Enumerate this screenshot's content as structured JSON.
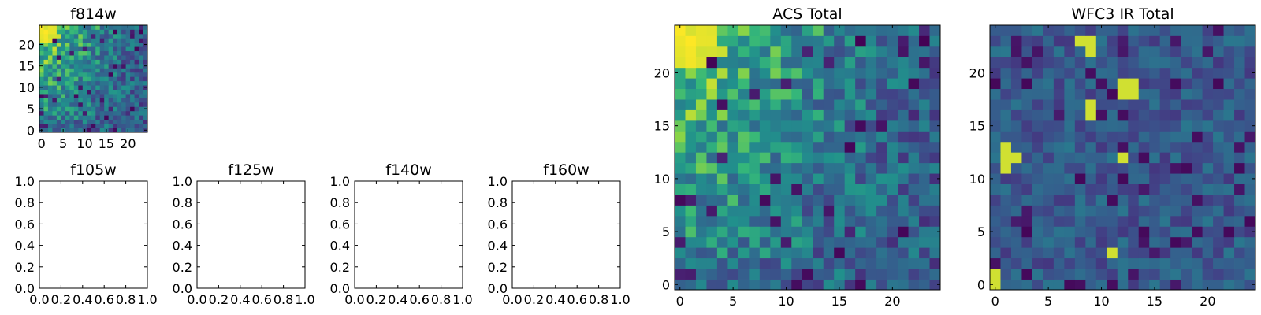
{
  "figure": {
    "background": "#ffffff",
    "colormap": "viridis"
  },
  "chart_data": [
    {
      "id": "f814w",
      "type": "heatmap",
      "title": "f814w",
      "xlabel": "",
      "ylabel": "",
      "xlim": [
        -0.5,
        24.5
      ],
      "ylim": [
        -0.5,
        24.5
      ],
      "xticks": [
        0,
        5,
        10,
        15,
        20
      ],
      "yticks": [
        0,
        5,
        10,
        15,
        20
      ],
      "xtick_labels": [
        "0",
        "5",
        "10",
        "15",
        "20"
      ],
      "ytick_labels": [
        "0",
        "5",
        "10",
        "15",
        "20"
      ],
      "grid_size": [
        25,
        25
      ],
      "seed": 11,
      "profile": "acs",
      "note_values": "25x25 image, normalized 0-1; brightest in upper-left corner"
    },
    {
      "id": "f105w",
      "type": "heatmap",
      "title": "f105w",
      "xlabel": "",
      "ylabel": "",
      "xlim": [
        0.0,
        1.0
      ],
      "ylim": [
        0.0,
        1.0
      ],
      "xticks": [
        0.0,
        0.2,
        0.4,
        0.6,
        0.8,
        1.0
      ],
      "yticks": [
        0.0,
        0.2,
        0.4,
        0.6,
        0.8,
        1.0
      ],
      "xtick_labels": [
        "0.0",
        "0.2",
        "0.4",
        "0.6",
        "0.8",
        "1.0"
      ],
      "ytick_labels": [
        "0.0",
        "0.2",
        "0.4",
        "0.6",
        "0.8",
        "1.0"
      ],
      "empty": true
    },
    {
      "id": "f125w",
      "type": "heatmap",
      "title": "f125w",
      "xlabel": "",
      "ylabel": "",
      "xlim": [
        0.0,
        1.0
      ],
      "ylim": [
        0.0,
        1.0
      ],
      "xticks": [
        0.0,
        0.2,
        0.4,
        0.6,
        0.8,
        1.0
      ],
      "yticks": [
        0.0,
        0.2,
        0.4,
        0.6,
        0.8,
        1.0
      ],
      "xtick_labels": [
        "0.0",
        "0.2",
        "0.4",
        "0.6",
        "0.8",
        "1.0"
      ],
      "ytick_labels": [
        "0.0",
        "0.2",
        "0.4",
        "0.6",
        "0.8",
        "1.0"
      ],
      "empty": true
    },
    {
      "id": "f140w",
      "type": "heatmap",
      "title": "f140w",
      "xlabel": "",
      "ylabel": "",
      "xlim": [
        0.0,
        1.0
      ],
      "ylim": [
        0.0,
        1.0
      ],
      "xticks": [
        0.0,
        0.2,
        0.4,
        0.6,
        0.8,
        1.0
      ],
      "yticks": [
        0.0,
        0.2,
        0.4,
        0.6,
        0.8,
        1.0
      ],
      "xtick_labels": [
        "0.0",
        "0.2",
        "0.4",
        "0.6",
        "0.8",
        "1.0"
      ],
      "ytick_labels": [
        "0.0",
        "0.2",
        "0.4",
        "0.6",
        "0.8",
        "1.0"
      ],
      "empty": true
    },
    {
      "id": "f160w",
      "type": "heatmap",
      "title": "f160w",
      "xlabel": "",
      "ylabel": "",
      "xlim": [
        0.0,
        1.0
      ],
      "ylim": [
        0.0,
        1.0
      ],
      "xticks": [
        0.0,
        0.2,
        0.4,
        0.6,
        0.8,
        1.0
      ],
      "yticks": [
        0.0,
        0.2,
        0.4,
        0.6,
        0.8,
        1.0
      ],
      "xtick_labels": [
        "0.0",
        "0.2",
        "0.4",
        "0.6",
        "0.8",
        "1.0"
      ],
      "ytick_labels": [
        "0.0",
        "0.2",
        "0.4",
        "0.6",
        "0.8",
        "1.0"
      ],
      "empty": true
    },
    {
      "id": "acs_total",
      "type": "heatmap",
      "title": "ACS Total",
      "xlabel": "",
      "ylabel": "",
      "xlim": [
        -0.5,
        24.5
      ],
      "ylim": [
        -0.5,
        24.5
      ],
      "xticks": [
        0,
        5,
        10,
        15,
        20
      ],
      "yticks": [
        0,
        5,
        10,
        15,
        20
      ],
      "xtick_labels": [
        "0",
        "5",
        "10",
        "15",
        "20"
      ],
      "ytick_labels": [
        "0",
        "5",
        "10",
        "15",
        "20"
      ],
      "grid_size": [
        25,
        25
      ],
      "seed": 11,
      "profile": "acs",
      "note_values": "25x25 image, normalized 0-1; bright gradient toward upper-left"
    },
    {
      "id": "wfc3_ir_total",
      "type": "heatmap",
      "title": "WFC3 IR Total",
      "xlabel": "",
      "ylabel": "",
      "xlim": [
        -0.5,
        24.5
      ],
      "ylim": [
        -0.5,
        24.5
      ],
      "xticks": [
        0,
        5,
        10,
        15,
        20
      ],
      "yticks": [
        0,
        5,
        10,
        15,
        20
      ],
      "xtick_labels": [
        "0",
        "5",
        "10",
        "15",
        "20"
      ],
      "ytick_labels": [
        "0",
        "5",
        "10",
        "15",
        "20"
      ],
      "grid_size": [
        25,
        25
      ],
      "seed": 29,
      "profile": "ir",
      "note_values": "25x25 image, mostly low (dark blue) with a few bright yellow pixels"
    }
  ]
}
